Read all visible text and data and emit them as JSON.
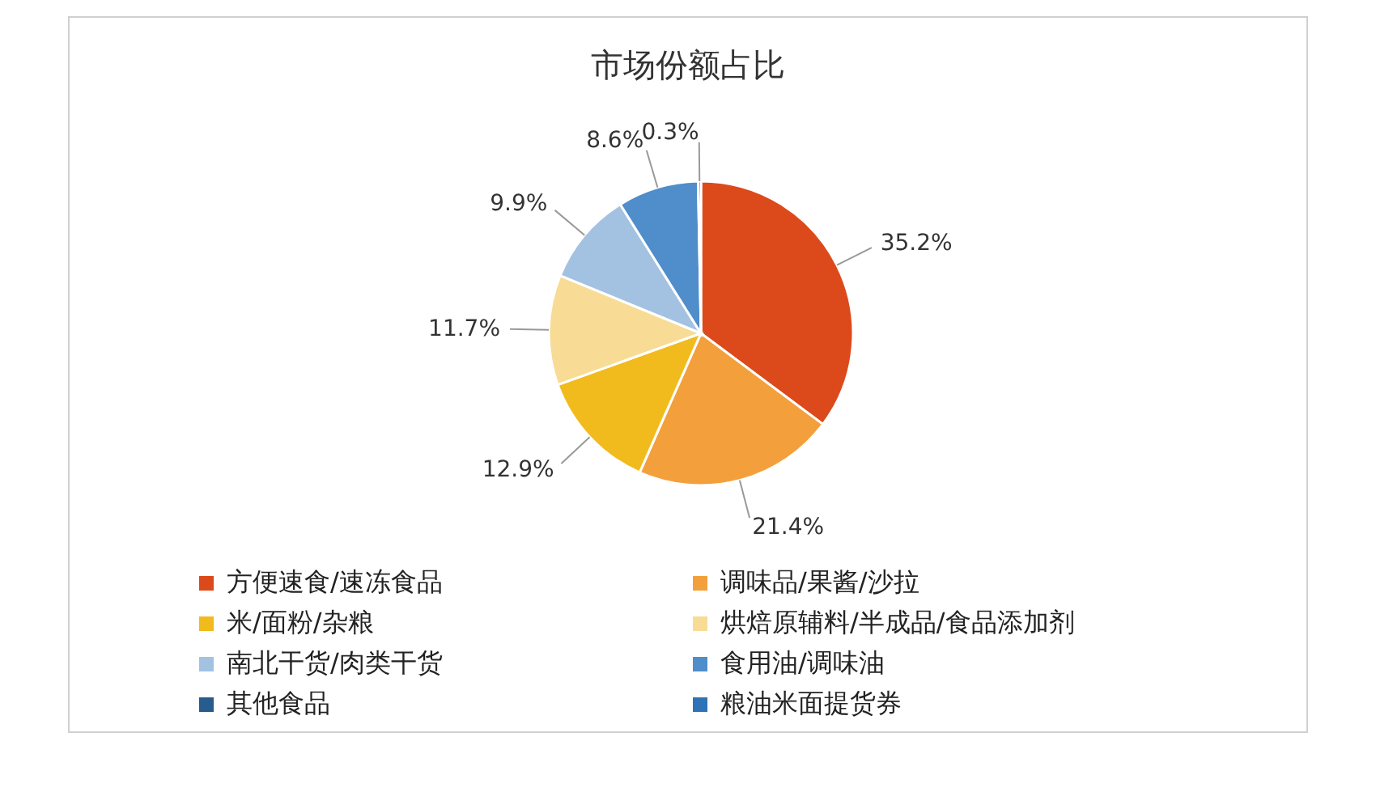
{
  "chart_data": {
    "type": "pie",
    "title": "市场份额占比",
    "categories": [
      "方便速食/速冻食品",
      "调味品/果酱/沙拉",
      "米/面粉/杂粮",
      "烘焙原辅料/半成品/食品添加剂",
      "南北干货/肉类干货",
      "食用油/调味油",
      "其他食品",
      "粮油米面提货券"
    ],
    "values": [
      35.2,
      21.4,
      12.9,
      11.7,
      9.9,
      8.6,
      0.3,
      0
    ],
    "value_labels": [
      "35.2%",
      "21.4%",
      "12.9%",
      "11.7%",
      "9.9%",
      "8.6%",
      "0.3%",
      null
    ],
    "colors": [
      "#dc4a1c",
      "#f3a03c",
      "#f2bb1d",
      "#f8dc96",
      "#a3c2e2",
      "#4f8dcb",
      "#265c8e",
      "#2e73b5"
    ],
    "legend": "bottom"
  }
}
